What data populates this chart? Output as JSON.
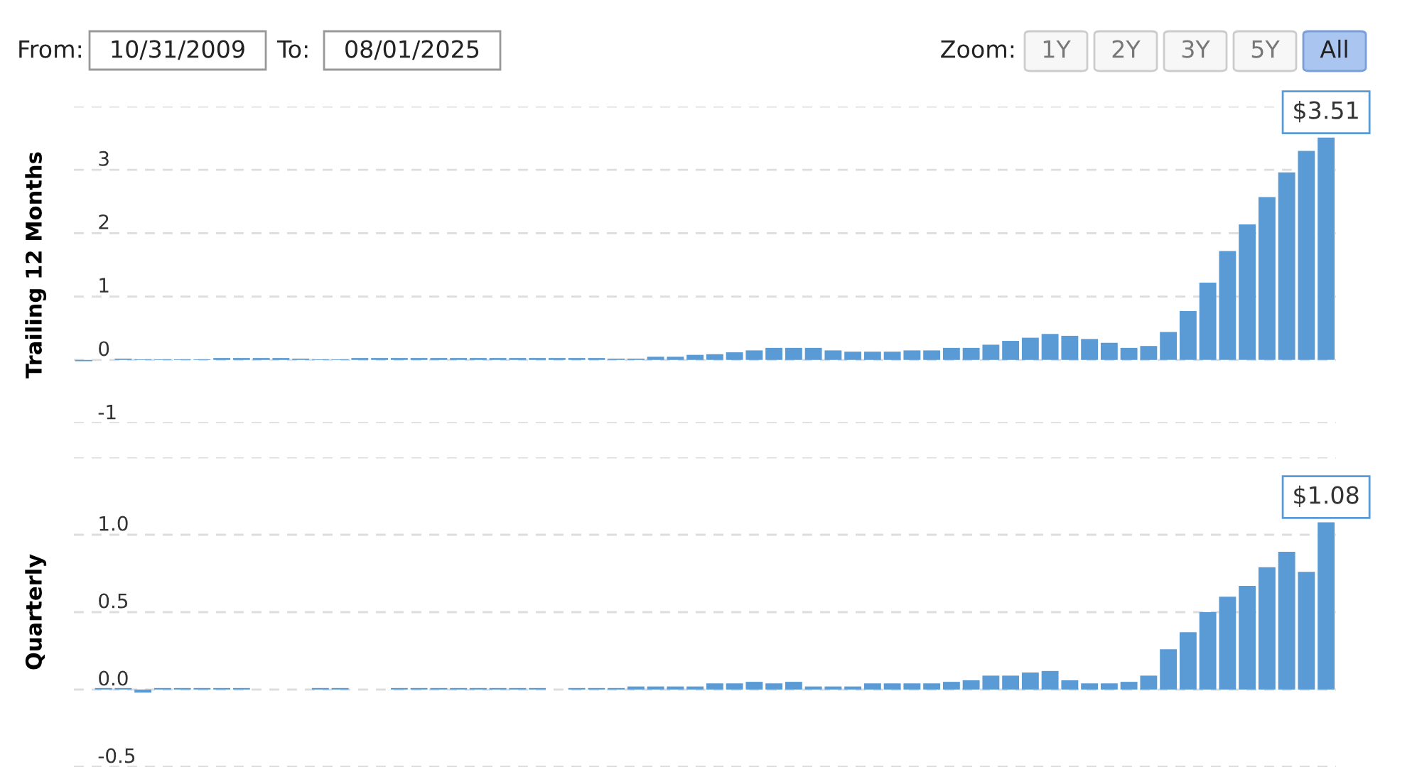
{
  "chart_data": [
    {
      "type": "bar",
      "ylabel": "Trailing 12 Months",
      "color": "#5b9bd5",
      "annotations": [
        "From:",
        "10/31/2009",
        "To:",
        "08/01/2025",
        "Zoom:",
        "1Y",
        "2Y",
        "3Y",
        "5Y",
        "All"
      ],
      "categories": [
        null,
        null,
        null,
        null,
        null,
        null,
        null,
        null,
        null,
        null,
        null,
        null,
        null,
        null,
        null,
        null,
        null,
        null,
        null,
        null,
        null,
        null,
        null,
        null,
        null,
        null,
        null,
        null,
        null,
        null,
        null,
        null,
        null,
        null,
        null,
        null,
        null,
        null,
        null,
        null,
        null,
        null,
        null,
        null,
        null,
        null,
        null,
        null,
        null,
        null,
        null,
        null,
        null,
        null,
        null,
        null,
        null,
        null,
        null,
        null,
        null,
        null,
        null,
        null
      ],
      "values": [
        -0.02,
        0.0,
        0.02,
        0.01,
        0.01,
        0.01,
        0.01,
        0.03,
        0.03,
        0.03,
        0.03,
        0.02,
        0.01,
        0.01,
        0.03,
        0.03,
        0.03,
        0.03,
        0.03,
        0.03,
        0.03,
        0.03,
        0.03,
        0.03,
        0.03,
        0.03,
        0.03,
        0.02,
        0.02,
        0.05,
        0.05,
        0.08,
        0.09,
        0.12,
        0.15,
        0.19,
        0.19,
        0.19,
        0.15,
        0.13,
        0.13,
        0.13,
        0.15,
        0.15,
        0.19,
        0.19,
        0.24,
        0.3,
        0.35,
        0.41,
        0.38,
        0.33,
        0.27,
        0.19,
        0.22,
        0.44,
        0.77,
        1.22,
        1.72,
        2.14,
        2.57,
        2.96,
        3.3,
        3.51
      ],
      "value_labels": [
        null,
        null,
        null,
        null,
        null,
        null,
        null,
        null,
        null,
        null,
        null,
        null,
        null,
        null,
        null,
        null,
        null,
        null,
        null,
        null,
        null,
        null,
        null,
        null,
        null,
        null,
        null,
        null,
        null,
        null,
        null,
        null,
        null,
        null,
        null,
        null,
        null,
        null,
        null,
        null,
        null,
        null,
        null,
        null,
        null,
        null,
        null,
        null,
        null,
        null,
        null,
        null,
        null,
        null,
        null,
        null,
        null,
        null,
        null,
        null,
        null,
        null,
        null,
        "$3.51"
      ],
      "ylim": [
        -1,
        4
      ],
      "yticks": [
        -1,
        0,
        1,
        2,
        3,
        {
          "value": 4,
          "label": null
        }
      ],
      "grid": "y",
      "tick_labels": "y"
    },
    {
      "type": "bar",
      "ylabel": "Quarterly",
      "color": "#5b9bd5",
      "categories": [
        null,
        null,
        null,
        null,
        null,
        null,
        null,
        null,
        null,
        null,
        null,
        null,
        null,
        null,
        null,
        null,
        null,
        null,
        null,
        null,
        null,
        null,
        null,
        null,
        null,
        null,
        null,
        null,
        null,
        null,
        null,
        null,
        null,
        null,
        null,
        null,
        null,
        null,
        null,
        null,
        null,
        null,
        null,
        null,
        null,
        null,
        null,
        null,
        null,
        null,
        null,
        null,
        null,
        null,
        null,
        null,
        null,
        null,
        null,
        null,
        null,
        null,
        null,
        null
      ],
      "values": [
        0.0,
        0.01,
        0.01,
        -0.02,
        0.01,
        0.01,
        0.01,
        0.01,
        0.01,
        0.0,
        0.0,
        0.0,
        0.01,
        0.01,
        0.0,
        0.0,
        0.01,
        0.01,
        0.01,
        0.01,
        0.01,
        0.01,
        0.01,
        0.01,
        0.0,
        0.01,
        0.01,
        0.01,
        0.02,
        0.02,
        0.02,
        0.02,
        0.04,
        0.04,
        0.05,
        0.04,
        0.05,
        0.02,
        0.02,
        0.02,
        0.04,
        0.04,
        0.04,
        0.04,
        0.05,
        0.06,
        0.09,
        0.09,
        0.11,
        0.12,
        0.06,
        0.04,
        0.04,
        0.05,
        0.09,
        0.26,
        0.37,
        0.5,
        0.6,
        0.67,
        0.79,
        0.89,
        0.76,
        1.08
      ],
      "value_labels": [
        null,
        null,
        null,
        null,
        null,
        null,
        null,
        null,
        null,
        null,
        null,
        null,
        null,
        null,
        null,
        null,
        null,
        null,
        null,
        null,
        null,
        null,
        null,
        null,
        null,
        null,
        null,
        null,
        null,
        null,
        null,
        null,
        null,
        null,
        null,
        null,
        null,
        null,
        null,
        null,
        null,
        null,
        null,
        null,
        null,
        null,
        null,
        null,
        null,
        null,
        null,
        null,
        null,
        null,
        null,
        null,
        null,
        null,
        null,
        null,
        null,
        null,
        null,
        "$1.08"
      ],
      "ylim": [
        -0.5,
        1.5
      ],
      "yticks": [
        {
          "value": -0.5,
          "label": "-0.5"
        },
        {
          "value": 0,
          "label": "0.0"
        },
        {
          "value": 0.5,
          "label": "0.5"
        },
        {
          "value": 1.0,
          "label": "1.0"
        },
        {
          "value": 1.5,
          "label": null
        }
      ],
      "grid": "y",
      "tick_labels": "y"
    }
  ]
}
